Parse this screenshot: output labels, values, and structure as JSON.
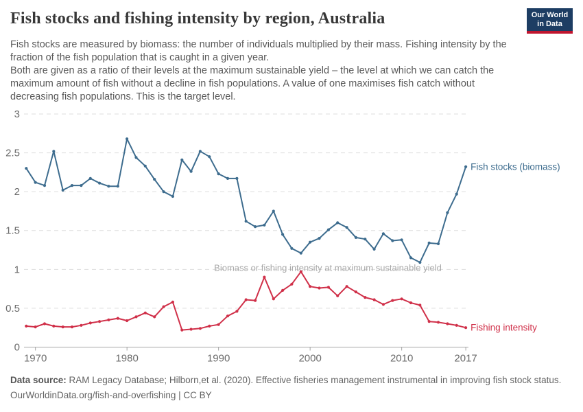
{
  "header": {
    "title": "Fish stocks and fishing intensity by region, Australia",
    "subtitle_p1": "Fish stocks are measured by biomass: the number of individuals multiplied by their mass. Fishing intensity by the fraction of the fish population that is caught in a given year.",
    "subtitle_p2": "Both are given as a ratio of their levels at the maximum sustainable yield – the level at which we can catch the maximum amount of fish without a decline in fish populations. A value of one maximises fish catch without decreasing fish populations. This is the target level.",
    "logo": {
      "line1": "Our World",
      "line2": "in Data",
      "bg_color": "#1d3d63",
      "stripe_color": "#c0152f"
    }
  },
  "chart_data": {
    "type": "line",
    "title": "Fish stocks and fishing intensity by region, Australia",
    "x": [
      1969,
      1970,
      1971,
      1972,
      1973,
      1974,
      1975,
      1976,
      1977,
      1978,
      1979,
      1980,
      1981,
      1982,
      1983,
      1984,
      1985,
      1986,
      1987,
      1988,
      1989,
      1990,
      1991,
      1992,
      1993,
      1994,
      1995,
      1996,
      1997,
      1998,
      1999,
      2000,
      2001,
      2002,
      2003,
      2004,
      2005,
      2006,
      2007,
      2008,
      2009,
      2010,
      2011,
      2012,
      2013,
      2014,
      2015,
      2016,
      2017
    ],
    "series": [
      {
        "name": "Fish stocks (biomass)",
        "color": "#3d6c8e",
        "values": [
          2.3,
          2.12,
          2.08,
          2.52,
          2.02,
          2.08,
          2.08,
          2.17,
          2.11,
          2.07,
          2.07,
          2.68,
          2.44,
          2.33,
          2.16,
          2.0,
          1.94,
          2.41,
          2.26,
          2.52,
          2.45,
          2.23,
          2.17,
          2.17,
          1.62,
          1.55,
          1.57,
          1.75,
          1.45,
          1.27,
          1.21,
          1.35,
          1.4,
          1.51,
          1.6,
          1.54,
          1.41,
          1.39,
          1.26,
          1.46,
          1.37,
          1.38,
          1.15,
          1.09,
          1.34,
          1.33,
          1.73,
          1.97,
          2.32
        ]
      },
      {
        "name": "Fishing intensity",
        "color": "#d03049",
        "values": [
          0.27,
          0.26,
          0.3,
          0.27,
          0.26,
          0.26,
          0.28,
          0.31,
          0.33,
          0.35,
          0.37,
          0.34,
          0.39,
          0.44,
          0.39,
          0.52,
          0.58,
          0.22,
          0.23,
          0.24,
          0.27,
          0.29,
          0.4,
          0.46,
          0.61,
          0.6,
          0.9,
          0.62,
          0.73,
          0.81,
          0.97,
          0.78,
          0.76,
          0.77,
          0.66,
          0.78,
          0.71,
          0.64,
          0.61,
          0.55,
          0.6,
          0.62,
          0.57,
          0.54,
          0.33,
          0.32,
          0.3,
          0.28,
          0.25
        ]
      }
    ],
    "annotation": "Biomass or fishing intensity at maximum sustainable yield",
    "annotation_y": 1,
    "yticks": [
      0,
      0.5,
      1,
      1.5,
      2,
      2.5,
      3
    ],
    "xticks": [
      1970,
      1980,
      1990,
      2000,
      2010,
      2017
    ],
    "ylim": [
      0,
      3
    ],
    "xlim": [
      1969,
      2017
    ],
    "grid": "horizontal dashed",
    "legend_position": "end-of-line labels"
  },
  "footer": {
    "source_label": "Data source:",
    "source_text": " RAM Legacy Database; Hilborn,et al. (2020). Effective fisheries management instrumental in improving fish stock status.",
    "link_line": "OurWorldinData.org/fish-and-overfishing | CC BY"
  }
}
